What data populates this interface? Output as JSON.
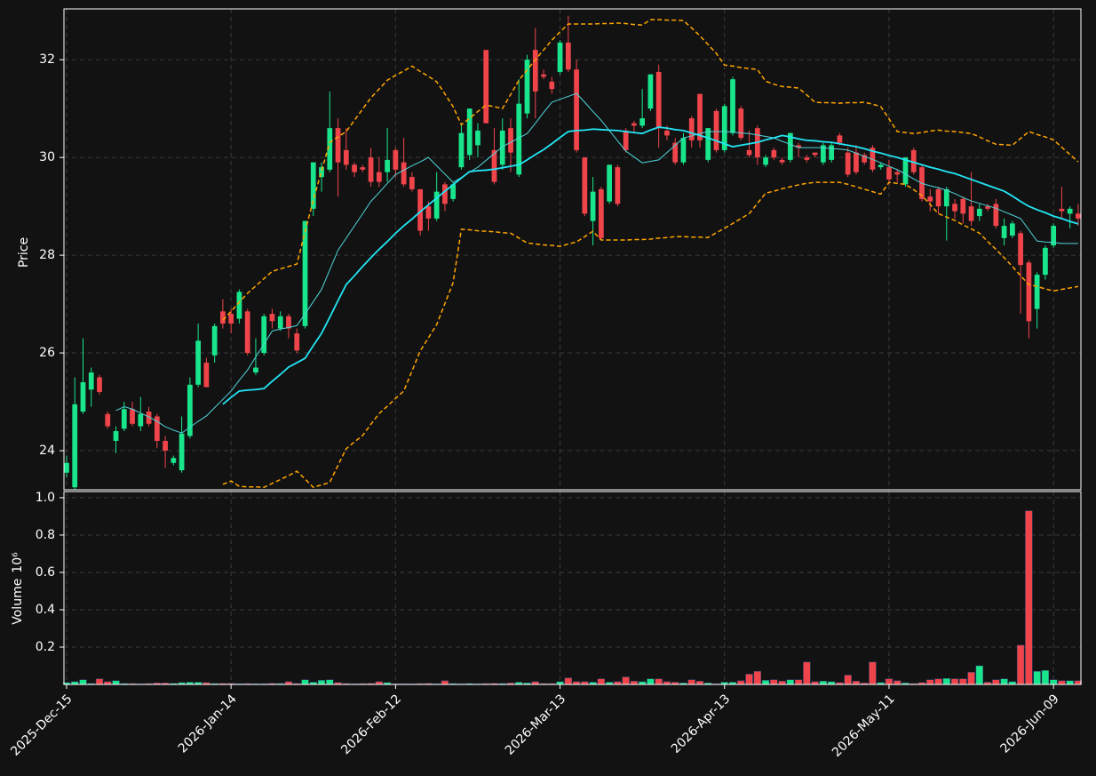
{
  "chart_data": {
    "type": "candlestick",
    "ylabel": "Price",
    "volume_label": "Volume",
    "volume_scale_label": "10⁶",
    "up_color": "#19e68c",
    "down_color": "#f0444b",
    "grid": true,
    "ylim": [
      23.2,
      33.04
    ],
    "yticks": [
      24,
      26,
      28,
      30,
      32
    ],
    "volume_ylim": [
      0,
      1.033
    ],
    "volume_yticks": [
      0.2,
      0.4,
      0.6,
      0.8,
      {
        "value": 1,
        "label": "1.0"
      }
    ],
    "categories": [
      "2025-Dec-15",
      null,
      null,
      null,
      null,
      null,
      null,
      null,
      null,
      null,
      null,
      null,
      null,
      null,
      null,
      null,
      null,
      null,
      null,
      null,
      "2026-Jan-14",
      null,
      null,
      null,
      null,
      null,
      null,
      null,
      null,
      null,
      null,
      null,
      null,
      null,
      null,
      null,
      null,
      null,
      null,
      null,
      "2026-Feb-12",
      null,
      null,
      null,
      null,
      null,
      null,
      null,
      null,
      null,
      null,
      null,
      null,
      null,
      null,
      null,
      null,
      null,
      null,
      null,
      "2026-Mar-13",
      null,
      null,
      null,
      null,
      null,
      null,
      null,
      null,
      null,
      null,
      null,
      null,
      null,
      null,
      null,
      null,
      null,
      null,
      null,
      "2026-Apr-13",
      null,
      null,
      null,
      null,
      null,
      null,
      null,
      null,
      null,
      null,
      null,
      null,
      null,
      null,
      null,
      null,
      null,
      null,
      null,
      "2026-May-11",
      null,
      null,
      null,
      null,
      null,
      null,
      null,
      null,
      null,
      null,
      null,
      null,
      null,
      null,
      null,
      null,
      null,
      null,
      null,
      "2026-Jun-09",
      null,
      null,
      null
    ],
    "open": [
      23.55,
      23.25,
      24.8,
      25.25,
      25.5,
      24.75,
      24.2,
      24.45,
      24.85,
      24.5,
      24.8,
      24.7,
      24.2,
      23.75,
      23.6,
      24.3,
      25.35,
      25.8,
      25.95,
      26.85,
      26.8,
      26.7,
      26.85,
      25.6,
      26.0,
      26.8,
      26.5,
      26.75,
      26.4,
      26.55,
      28.95,
      29.6,
      29.75,
      30.6,
      30.15,
      29.85,
      29.8,
      30.0,
      29.7,
      29.7,
      30.15,
      29.9,
      29.6,
      29.35,
      29.0,
      28.75,
      29.45,
      29.15,
      29.8,
      30.05,
      30.25,
      32.2,
      30.15,
      29.85,
      30.6,
      29.65,
      30.9,
      32.2,
      31.7,
      31.55,
      31.75,
      32.35,
      31.8,
      30.0,
      28.7,
      29.35,
      29.1,
      29.8,
      30.55,
      30.7,
      30.65,
      31.0,
      31.75,
      30.55,
      30.3,
      29.9,
      30.8,
      31.3,
      29.95,
      30.95,
      30.15,
      30.5,
      31.0,
      30.15,
      30.6,
      29.85,
      30.15,
      29.95,
      29.95,
      30.25,
      30.0,
      30.1,
      29.9,
      29.95,
      30.45,
      30.1,
      30.1,
      30.05,
      30.2,
      29.8,
      29.8,
      29.7,
      29.45,
      30.15,
      29.8,
      29.2,
      29.35,
      29.0,
      29.05,
      29.15,
      29.0,
      28.8,
      29.0,
      29.05,
      28.35,
      28.4,
      28.45,
      27.85,
      26.9,
      27.6,
      28.2,
      28.95,
      28.85,
      28.85
    ],
    "high": [
      23.9,
      25.5,
      26.3,
      25.7,
      25.55,
      24.8,
      24.5,
      25.0,
      25.0,
      25.1,
      24.9,
      24.75,
      24.3,
      23.9,
      24.7,
      25.5,
      26.6,
      25.9,
      26.6,
      27.1,
      26.9,
      27.3,
      26.9,
      26.3,
      26.8,
      26.9,
      26.85,
      26.8,
      26.5,
      28.7,
      29.9,
      29.9,
      31.35,
      30.8,
      30.6,
      29.9,
      29.85,
      30.2,
      30.0,
      30.6,
      30.2,
      30.4,
      29.7,
      29.35,
      29.1,
      29.7,
      29.5,
      29.5,
      30.7,
      31.0,
      30.7,
      32.2,
      30.6,
      30.8,
      30.8,
      31.6,
      32.1,
      32.65,
      31.8,
      31.65,
      32.4,
      32.9,
      32.0,
      30.0,
      29.6,
      29.4,
      29.85,
      29.85,
      30.6,
      30.75,
      31.4,
      31.7,
      31.9,
      30.65,
      30.4,
      30.5,
      30.85,
      31.3,
      30.6,
      31.0,
      31.1,
      31.65,
      31.05,
      30.55,
      30.65,
      30.05,
      30.2,
      30.0,
      30.5,
      30.3,
      30.05,
      30.1,
      30.3,
      30.3,
      30.5,
      30.2,
      30.25,
      30.1,
      30.25,
      29.9,
      29.95,
      29.75,
      30.0,
      30.2,
      29.85,
      29.35,
      29.4,
      29.4,
      29.15,
      29.2,
      29.7,
      29.05,
      29.05,
      29.15,
      28.75,
      28.7,
      28.5,
      27.9,
      27.65,
      28.2,
      28.65,
      29.4,
      29.0,
      29.05
    ],
    "low": [
      23.45,
      23.2,
      24.75,
      24.9,
      25.15,
      24.45,
      23.95,
      24.4,
      24.5,
      24.4,
      24.5,
      24.05,
      23.65,
      23.7,
      23.55,
      24.25,
      25.3,
      25.3,
      25.8,
      26.5,
      26.4,
      26.6,
      25.95,
      25.55,
      25.95,
      26.5,
      26.45,
      26.3,
      26.0,
      26.5,
      28.8,
      29.3,
      29.7,
      29.2,
      29.75,
      29.6,
      29.7,
      29.4,
      29.4,
      29.5,
      29.6,
      29.4,
      29.3,
      28.4,
      28.5,
      28.7,
      28.9,
      29.1,
      29.75,
      29.95,
      30.0,
      30.7,
      29.45,
      29.75,
      29.7,
      29.6,
      30.8,
      30.8,
      31.6,
      31.3,
      31.7,
      31.75,
      30.1,
      28.8,
      28.2,
      28.3,
      29.05,
      29.0,
      30.1,
      30.5,
      30.6,
      30.95,
      30.2,
      30.35,
      29.85,
      29.85,
      30.2,
      30.2,
      29.9,
      30.1,
      30.1,
      30.45,
      30.35,
      30.0,
      29.85,
      29.8,
      29.95,
      29.85,
      29.9,
      30.0,
      29.9,
      30.0,
      29.85,
      29.9,
      30.25,
      29.6,
      29.65,
      29.85,
      29.7,
      29.75,
      29.45,
      29.5,
      29.4,
      29.65,
      29.1,
      28.9,
      28.85,
      28.3,
      28.75,
      28.65,
      28.6,
      28.7,
      28.9,
      28.55,
      28.2,
      28.35,
      26.8,
      26.3,
      26.5,
      27.5,
      28.15,
      28.75,
      28.55,
      28.6
    ],
    "close": [
      23.75,
      24.95,
      25.4,
      25.6,
      25.2,
      24.5,
      24.4,
      24.85,
      24.55,
      24.75,
      24.55,
      24.2,
      24.0,
      23.85,
      24.35,
      25.35,
      26.25,
      25.3,
      26.55,
      26.6,
      26.6,
      27.25,
      26.0,
      25.7,
      26.75,
      26.65,
      26.75,
      26.5,
      26.05,
      28.7,
      29.9,
      29.8,
      30.6,
      29.9,
      29.85,
      29.7,
      29.75,
      29.5,
      29.5,
      29.95,
      29.75,
      29.45,
      29.35,
      28.5,
      28.75,
      29.3,
      29.05,
      29.45,
      30.5,
      31.0,
      30.55,
      30.7,
      29.5,
      30.55,
      30.1,
      31.1,
      32.0,
      31.35,
      31.65,
      31.4,
      32.35,
      31.8,
      30.15,
      28.85,
      29.3,
      28.35,
      29.85,
      29.05,
      30.15,
      30.65,
      30.8,
      31.7,
      30.6,
      30.45,
      29.9,
      30.4,
      30.35,
      30.35,
      30.6,
      30.15,
      31.05,
      31.6,
      30.4,
      30.05,
      30.0,
      30.0,
      30.0,
      29.9,
      30.5,
      30.2,
      29.95,
      30.05,
      30.25,
      30.25,
      30.3,
      29.65,
      29.7,
      29.9,
      29.75,
      29.85,
      29.55,
      29.65,
      30.0,
      29.7,
      29.15,
      29.1,
      29.0,
      29.35,
      28.9,
      28.85,
      28.7,
      28.95,
      28.95,
      28.6,
      28.6,
      28.65,
      27.8,
      26.65,
      27.6,
      28.15,
      28.6,
      28.9,
      28.95,
      28.75
    ],
    "volume": [
      0.01,
      0.015,
      0.025,
      0.005,
      0.03,
      0.015,
      0.02,
      0.005,
      0.005,
      0.003,
      0.005,
      0.008,
      0.008,
      0.006,
      0.01,
      0.012,
      0.012,
      0.01,
      0.005,
      0.006,
      0.006,
      0.004,
      0.005,
      0.004,
      0.004,
      0.006,
      0.005,
      0.015,
      0.005,
      0.025,
      0.012,
      0.022,
      0.025,
      0.01,
      0.005,
      0.004,
      0.005,
      0.006,
      0.015,
      0.01,
      0.004,
      0.004,
      0.003,
      0.005,
      0.006,
      0.004,
      0.02,
      0.005,
      0.004,
      0.005,
      0.004,
      0.005,
      0.006,
      0.005,
      0.008,
      0.012,
      0.008,
      0.015,
      0.005,
      0.005,
      0.015,
      0.035,
      0.015,
      0.015,
      0.012,
      0.03,
      0.012,
      0.015,
      0.04,
      0.018,
      0.015,
      0.03,
      0.03,
      0.015,
      0.012,
      0.008,
      0.025,
      0.018,
      0.008,
      0.004,
      0.012,
      0.012,
      0.02,
      0.055,
      0.07,
      0.022,
      0.025,
      0.018,
      0.025,
      0.025,
      0.12,
      0.015,
      0.018,
      0.015,
      0.01,
      0.05,
      0.018,
      0.008,
      0.12,
      0.01,
      0.03,
      0.02,
      0.008,
      0.005,
      0.01,
      0.025,
      0.03,
      0.032,
      0.03,
      0.03,
      0.065,
      0.1,
      0.012,
      0.025,
      0.03,
      0.015,
      0.21,
      0.93,
      0.07,
      0.075,
      0.025,
      0.02,
      0.02,
      0.02
    ],
    "overlays": [
      {
        "color": "#4fd6dc",
        "width": 1,
        "dashed": false,
        "values": [
          null,
          null,
          null,
          null,
          null,
          null,
          24.82,
          24.9,
          24.85,
          24.77,
          24.69,
          24.6,
          24.49,
          24.42,
          24.36,
          24.48,
          24.6,
          24.71,
          24.88,
          25.05,
          25.22,
          25.44,
          25.65,
          25.92,
          26.18,
          26.45,
          26.49,
          26.52,
          26.56,
          26.8,
          27.05,
          27.3,
          27.7,
          28.1,
          28.35,
          28.6,
          28.85,
          29.1,
          29.28,
          29.47,
          29.65,
          29.74,
          29.83,
          29.91,
          30.0,
          29.83,
          29.66,
          29.49,
          29.59,
          29.7,
          29.8,
          29.94,
          30.08,
          30.22,
          30.31,
          30.4,
          30.49,
          30.7,
          30.92,
          31.13,
          31.19,
          31.25,
          31.31,
          31.13,
          30.94,
          30.76,
          30.55,
          30.34,
          30.13,
          30.01,
          29.89,
          29.92,
          29.95,
          30.1,
          30.25,
          30.4,
          30.44,
          30.49,
          30.53,
          30.53,
          30.53,
          30.52,
          30.5,
          30.49,
          30.46,
          30.43,
          30.4,
          30.33,
          30.27,
          30.2,
          30.2,
          30.2,
          30.2,
          30.18,
          30.17,
          30.15,
          30.09,
          30.02,
          29.96,
          29.89,
          29.82,
          29.75,
          29.66,
          29.56,
          29.47,
          29.42,
          29.38,
          29.33,
          29.26,
          29.18,
          29.11,
          29.06,
          29.01,
          28.96,
          28.89,
          28.82,
          28.75,
          28.52,
          28.29,
          28.27,
          28.26,
          28.24,
          28.24,
          28.24
        ]
      },
      {
        "color": "#22e6f5",
        "width": 1.8,
        "dashed": false,
        "values": [
          null,
          null,
          null,
          null,
          null,
          null,
          null,
          null,
          null,
          null,
          null,
          null,
          null,
          null,
          null,
          null,
          null,
          null,
          null,
          24.95,
          25.09,
          25.22,
          25.24,
          25.25,
          25.27,
          25.42,
          25.56,
          25.71,
          25.8,
          25.89,
          26.15,
          26.4,
          26.73,
          27.07,
          27.4,
          27.58,
          27.77,
          27.95,
          28.12,
          28.28,
          28.45,
          28.6,
          28.74,
          28.89,
          29.03,
          29.17,
          29.31,
          29.44,
          29.58,
          29.71,
          29.73,
          29.74,
          29.76,
          29.79,
          29.82,
          29.85,
          29.95,
          30.06,
          30.16,
          30.28,
          30.41,
          30.53,
          30.55,
          30.56,
          30.58,
          30.57,
          30.56,
          30.55,
          30.53,
          30.51,
          30.49,
          30.56,
          30.62,
          30.6,
          30.57,
          30.55,
          30.5,
          30.45,
          30.4,
          30.34,
          30.28,
          30.22,
          30.25,
          30.28,
          30.31,
          30.36,
          30.4,
          30.45,
          30.42,
          30.38,
          30.35,
          30.34,
          30.32,
          30.31,
          30.28,
          30.25,
          30.22,
          30.18,
          30.13,
          30.09,
          30.04,
          30.0,
          29.95,
          29.9,
          29.85,
          29.8,
          29.76,
          29.71,
          29.67,
          29.61,
          29.55,
          29.49,
          29.43,
          29.37,
          29.31,
          29.21,
          29.1,
          29.0,
          28.93,
          28.87,
          28.8,
          28.75,
          28.69,
          28.64
        ]
      },
      {
        "color": "#ffa500",
        "width": 1.5,
        "dashed": true,
        "values": [
          null,
          null,
          null,
          null,
          null,
          null,
          null,
          null,
          null,
          null,
          null,
          null,
          null,
          null,
          null,
          null,
          null,
          null,
          null,
          26.67,
          26.85,
          27.04,
          27.22,
          27.37,
          27.52,
          27.67,
          27.72,
          27.77,
          27.82,
          28.48,
          29.13,
          29.72,
          30.31,
          30.42,
          30.53,
          30.76,
          30.99,
          31.22,
          31.4,
          31.58,
          31.68,
          31.77,
          31.87,
          31.76,
          31.66,
          31.55,
          31.3,
          31.04,
          30.67,
          30.8,
          30.94,
          31.07,
          31.04,
          31.0,
          31.29,
          31.58,
          31.79,
          32.0,
          32.2,
          32.4,
          32.57,
          32.73,
          32.73,
          32.73,
          32.73,
          32.74,
          32.74,
          32.75,
          32.74,
          32.72,
          32.71,
          32.82,
          32.82,
          32.81,
          32.81,
          32.8,
          32.65,
          32.49,
          32.31,
          32.13,
          31.89,
          31.87,
          31.84,
          31.82,
          31.8,
          31.56,
          31.5,
          31.45,
          31.44,
          31.42,
          31.28,
          31.13,
          31.12,
          31.12,
          31.11,
          31.12,
          31.12,
          31.13,
          31.09,
          31.04,
          30.79,
          30.53,
          30.51,
          30.49,
          30.51,
          30.54,
          30.56,
          30.54,
          30.53,
          30.51,
          30.49,
          30.42,
          30.34,
          30.27,
          30.26,
          30.25,
          30.39,
          30.53,
          30.47,
          30.42,
          30.36,
          30.21,
          30.06,
          29.91
        ]
      },
      {
        "color": "#ffa500",
        "width": 1.5,
        "dashed": true,
        "values": [
          null,
          null,
          null,
          null,
          null,
          null,
          null,
          null,
          null,
          null,
          null,
          null,
          null,
          null,
          null,
          null,
          null,
          null,
          null,
          23.31,
          23.38,
          23.27,
          23.26,
          23.26,
          23.25,
          23.33,
          23.41,
          23.49,
          23.58,
          23.42,
          23.25,
          23.3,
          23.35,
          23.7,
          24.04,
          24.18,
          24.31,
          24.54,
          24.76,
          24.91,
          25.07,
          25.22,
          25.63,
          26.04,
          26.31,
          26.58,
          27.01,
          27.44,
          28.53,
          28.52,
          28.5,
          28.49,
          28.48,
          28.46,
          28.45,
          28.35,
          28.25,
          28.23,
          28.21,
          28.2,
          28.18,
          28.23,
          28.27,
          28.38,
          28.49,
          28.31,
          28.31,
          28.31,
          28.31,
          28.32,
          28.32,
          28.33,
          28.35,
          28.36,
          28.38,
          28.38,
          28.37,
          28.37,
          28.36,
          28.46,
          28.55,
          28.65,
          28.75,
          28.85,
          29.06,
          29.27,
          29.31,
          29.36,
          29.4,
          29.44,
          29.47,
          29.49,
          29.49,
          29.49,
          29.49,
          29.45,
          29.4,
          29.35,
          29.3,
          29.25,
          29.49,
          29.47,
          29.45,
          29.34,
          29.22,
          29.04,
          28.85,
          28.78,
          28.71,
          28.62,
          28.54,
          28.45,
          28.28,
          28.12,
          27.95,
          27.77,
          27.58,
          27.4,
          27.36,
          27.31,
          27.27,
          27.3,
          27.33,
          27.36
        ]
      }
    ]
  }
}
